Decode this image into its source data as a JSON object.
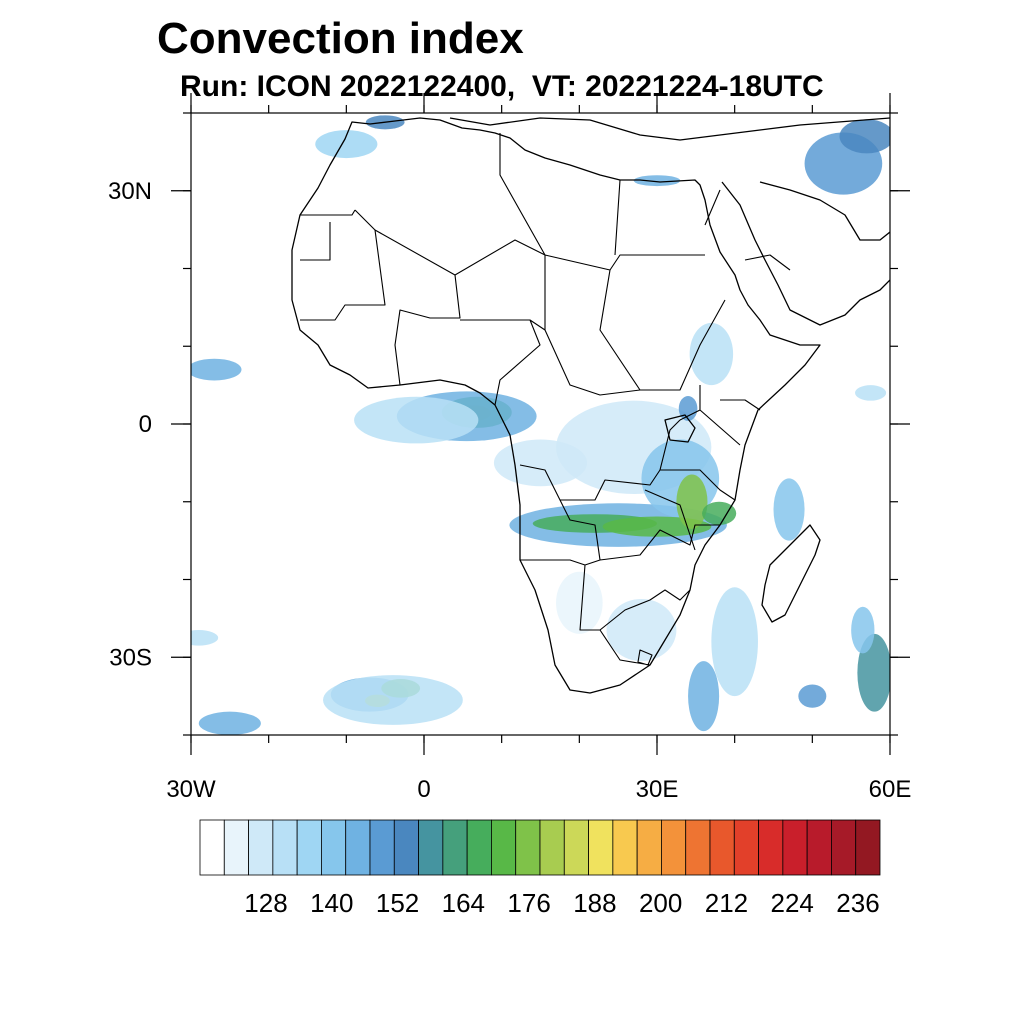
{
  "title": "Convection index",
  "subtitle": "Run: ICON 2022122400,  VT: 20221224-18UTC",
  "map": {
    "projection": "cylindrical-equidistant",
    "lon_range": [
      -30,
      60
    ],
    "lat_range": [
      -40,
      40
    ],
    "x_ticks": [
      {
        "lon": -30,
        "label": "30W"
      },
      {
        "lon": 0,
        "label": "0"
      },
      {
        "lon": 30,
        "label": "30E"
      },
      {
        "lon": 60,
        "label": "60E"
      }
    ],
    "y_ticks": [
      {
        "lat": 30,
        "label": "30N"
      },
      {
        "lat": 0,
        "label": "0"
      },
      {
        "lat": -30,
        "label": "30S"
      }
    ],
    "minor_lon_step": 10,
    "minor_lat_step": 10
  },
  "colorbar": {
    "colors": [
      "#ffffff",
      "#e8f4fb",
      "#cfe9f8",
      "#b8e0f6",
      "#9fd6f3",
      "#86c6ec",
      "#6fb2e2",
      "#5a9bd3",
      "#4a87bf",
      "#4594a0",
      "#45a07c",
      "#46ad5c",
      "#58b847",
      "#7fc249",
      "#a8cc50",
      "#ccd858",
      "#f0e25e",
      "#f8c94f",
      "#f6ad44",
      "#f3923a",
      "#ee7432",
      "#e8582c",
      "#e2402a",
      "#d82c2a",
      "#c91f2b",
      "#b81b2b",
      "#a61a28",
      "#931822"
    ],
    "labels": [
      {
        "after_box": 2,
        "text": "128"
      },
      {
        "after_box": 4,
        "text": "140"
      },
      {
        "after_box": 6,
        "text": "152"
      },
      {
        "after_box": 8,
        "text": "164"
      },
      {
        "after_box": 10,
        "text": "176"
      },
      {
        "after_box": 12,
        "text": "188"
      },
      {
        "after_box": 14,
        "text": "200"
      },
      {
        "after_box": 16,
        "text": "212"
      },
      {
        "after_box": 18,
        "text": "224"
      },
      {
        "after_box": 20,
        "text": "236"
      }
    ]
  },
  "convection_areas": [
    {
      "lon": 6.4,
      "lat": 1.4,
      "rx": 2.2,
      "ry": 1.0,
      "level": 15
    },
    {
      "lon": 6.8,
      "lat": 1.5,
      "rx": 4.5,
      "ry": 2.0,
      "level": 11
    },
    {
      "lon": 5.5,
      "lat": 1.0,
      "rx": 9.0,
      "ry": 3.2,
      "level": 6
    },
    {
      "lon": -1.0,
      "lat": 0.5,
      "rx": 8.0,
      "ry": 3.0,
      "level": 3
    },
    {
      "lon": -27.0,
      "lat": 7.0,
      "rx": 3.5,
      "ry": 1.4,
      "level": 6
    },
    {
      "lon": 25.0,
      "lat": -13.0,
      "rx": 14.0,
      "ry": 2.8,
      "level": 6
    },
    {
      "lon": 22.0,
      "lat": -12.8,
      "rx": 8.0,
      "ry": 1.2,
      "level": 11
    },
    {
      "lon": 30.0,
      "lat": -13.2,
      "rx": 7.0,
      "ry": 1.3,
      "level": 12
    },
    {
      "lon": 27.0,
      "lat": -3.0,
      "rx": 10.0,
      "ry": 6.0,
      "level": 2
    },
    {
      "lon": 33.0,
      "lat": -7.0,
      "rx": 5.0,
      "ry": 5.0,
      "level": 5
    },
    {
      "lon": 34.5,
      "lat": -10.0,
      "rx": 2.0,
      "ry": 3.5,
      "level": 13
    },
    {
      "lon": 38.0,
      "lat": -11.5,
      "rx": 2.2,
      "ry": 1.5,
      "level": 11
    },
    {
      "lon": 37.0,
      "lat": 9.0,
      "rx": 2.8,
      "ry": 4.0,
      "level": 3
    },
    {
      "lon": 34.0,
      "lat": 2.0,
      "rx": 1.2,
      "ry": 1.6,
      "level": 7
    },
    {
      "lon": 54.0,
      "lat": 33.5,
      "rx": 5.0,
      "ry": 4.0,
      "level": 7
    },
    {
      "lon": 57.0,
      "lat": 37.0,
      "rx": 3.5,
      "ry": 2.2,
      "level": 8
    },
    {
      "lon": 30.0,
      "lat": 31.3,
      "rx": 3.0,
      "ry": 0.7,
      "level": 6
    },
    {
      "lon": -10.0,
      "lat": 36.0,
      "rx": 4.0,
      "ry": 1.8,
      "level": 4
    },
    {
      "lon": -5.0,
      "lat": 38.8,
      "rx": 2.5,
      "ry": 0.9,
      "level": 8
    },
    {
      "lon": -7.0,
      "lat": -34.8,
      "rx": 5.0,
      "ry": 2.2,
      "level": 6
    },
    {
      "lon": -6.0,
      "lat": -35.6,
      "rx": 1.6,
      "ry": 0.8,
      "level": 14
    },
    {
      "lon": -3.0,
      "lat": -34.0,
      "rx": 2.5,
      "ry": 1.2,
      "level": 12
    },
    {
      "lon": -4.0,
      "lat": -35.5,
      "rx": 9.0,
      "ry": 3.2,
      "level": 3
    },
    {
      "lon": -25.0,
      "lat": -38.5,
      "rx": 4.0,
      "ry": 1.5,
      "level": 6
    },
    {
      "lon": -29.0,
      "lat": -27.5,
      "rx": 2.5,
      "ry": 1.0,
      "level": 3
    },
    {
      "lon": 58.0,
      "lat": -32.0,
      "rx": 2.2,
      "ry": 5.0,
      "level": 9
    },
    {
      "lon": 56.5,
      "lat": -26.5,
      "rx": 1.5,
      "ry": 3.0,
      "level": 5
    },
    {
      "lon": 50.0,
      "lat": -35.0,
      "rx": 1.8,
      "ry": 1.5,
      "level": 7
    },
    {
      "lon": 47.0,
      "lat": -11.0,
      "rx": 2.0,
      "ry": 4.0,
      "level": 5
    },
    {
      "lon": 40.0,
      "lat": -28.0,
      "rx": 3.0,
      "ry": 7.0,
      "level": 3
    },
    {
      "lon": 36.0,
      "lat": -35.0,
      "rx": 2.0,
      "ry": 4.5,
      "level": 6
    },
    {
      "lon": 28.0,
      "lat": -26.5,
      "rx": 4.5,
      "ry": 4.0,
      "level": 2
    },
    {
      "lon": 20.0,
      "lat": -23.0,
      "rx": 3.0,
      "ry": 4.0,
      "level": 1
    },
    {
      "lon": 15.0,
      "lat": -5.0,
      "rx": 6.0,
      "ry": 3.0,
      "level": 2
    },
    {
      "lon": 57.5,
      "lat": 4.0,
      "rx": 2.0,
      "ry": 1.0,
      "level": 3
    }
  ]
}
